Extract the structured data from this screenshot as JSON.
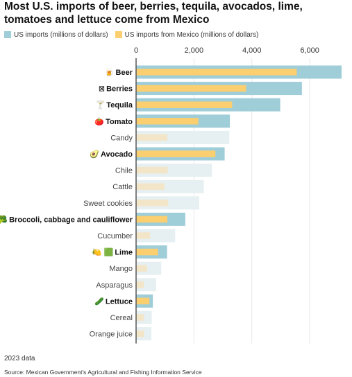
{
  "title": "Most U.S. imports of beer, berries, tequila, avocados, lime, tomatoes and lettuce come from Mexico",
  "legend": [
    {
      "label": "US imports (millions of dollars)",
      "color": "#9fcdd8"
    },
    {
      "label": "US imports from Mexico (millions of dollars)",
      "color": "#fbcf6f"
    }
  ],
  "footnote": "2023 data",
  "source": "Source: Mexican Government's Agricultural and Fishing Information Service",
  "colors": {
    "total_highlight": "#9fcdd8",
    "total_muted": "#e6eff1",
    "mexico_highlight": "#fbcf6f",
    "mexico_muted": "#f3e6c8",
    "axis": "#555555",
    "grid": "#e8e8e8"
  },
  "chart_data": {
    "type": "bar",
    "orientation": "horizontal",
    "xlim": [
      0,
      7100
    ],
    "xticks": [
      0,
      2000,
      4000,
      6000
    ],
    "xtick_labels": [
      "0",
      "2,000",
      "4,000",
      "6,000"
    ],
    "grid": true,
    "legend_position": "top-left",
    "categories": [
      {
        "label": "Beer",
        "icon": "beer-icon",
        "glyph": "🍺",
        "highlight": true,
        "total": 7100,
        "mexico": 5550
      },
      {
        "label": "Berries",
        "icon": "berries-icon",
        "glyph": "⊠",
        "highlight": true,
        "total": 5730,
        "mexico": 3800
      },
      {
        "label": "Tequila",
        "icon": "tequila-icon",
        "glyph": "🍸",
        "highlight": true,
        "total": 4980,
        "mexico": 3320
      },
      {
        "label": "Tomato",
        "icon": "tomato-icon",
        "glyph": "🍅",
        "highlight": true,
        "total": 3240,
        "mexico": 2150
      },
      {
        "label": "Candy",
        "icon": "",
        "glyph": "",
        "highlight": false,
        "total": 3220,
        "mexico": 1080
      },
      {
        "label": "Avocado",
        "icon": "avocado-icon",
        "glyph": "🥑",
        "highlight": true,
        "total": 3060,
        "mexico": 2740
      },
      {
        "label": "Chile",
        "icon": "",
        "glyph": "",
        "highlight": false,
        "total": 2620,
        "mexico": 1090
      },
      {
        "label": "Cattle",
        "icon": "",
        "glyph": "",
        "highlight": false,
        "total": 2340,
        "mexico": 980
      },
      {
        "label": "Sweet cookies",
        "icon": "",
        "glyph": "",
        "highlight": false,
        "total": 2180,
        "mexico": 1110
      },
      {
        "label": "Broccoli, cabbage and cauliflower",
        "icon": "broccoli-icon",
        "glyph": "🥦",
        "highlight": true,
        "total": 1700,
        "mexico": 1080
      },
      {
        "label": "Cucumber",
        "icon": "",
        "glyph": "",
        "highlight": false,
        "total": 1350,
        "mexico": 480
      },
      {
        "label": "Lime",
        "icon": "lime-icon",
        "glyph": "🍋 🟩",
        "highlight": true,
        "total": 1070,
        "mexico": 760
      },
      {
        "label": "Mango",
        "icon": "",
        "glyph": "",
        "highlight": false,
        "total": 870,
        "mexico": 380
      },
      {
        "label": "Asparagus",
        "icon": "",
        "glyph": "",
        "highlight": false,
        "total": 690,
        "mexico": 270
      },
      {
        "label": "Lettuce",
        "icon": "lettuce-icon",
        "glyph": "🥒",
        "highlight": true,
        "total": 580,
        "mexico": 460
      },
      {
        "label": "Cereal",
        "icon": "",
        "glyph": "",
        "highlight": false,
        "total": 540,
        "mexico": 270
      },
      {
        "label": "Orange juice",
        "icon": "",
        "glyph": "",
        "highlight": false,
        "total": 530,
        "mexico": 280
      }
    ]
  }
}
